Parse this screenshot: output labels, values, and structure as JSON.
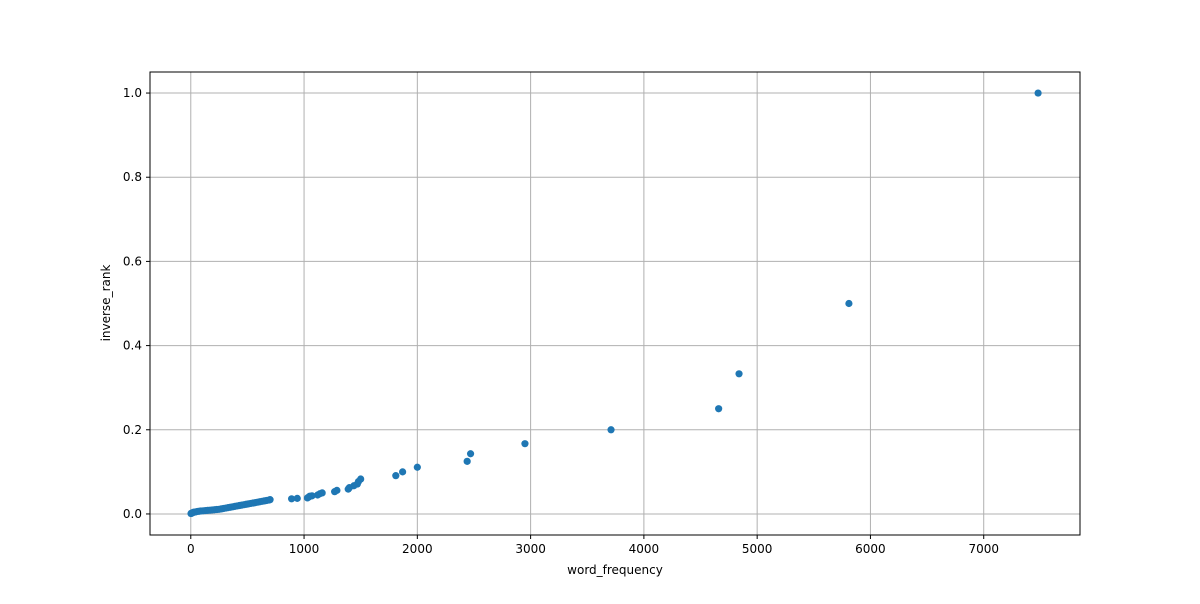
{
  "chart_data": {
    "type": "scatter",
    "title": "",
    "xlabel": "word_frequency",
    "ylabel": "inverse_rank",
    "xlim": [
      -360,
      7850
    ],
    "ylim": [
      -0.05,
      1.05
    ],
    "x_ticks": [
      0,
      1000,
      2000,
      3000,
      4000,
      5000,
      6000,
      7000
    ],
    "x_tick_labels": [
      "0",
      "1000",
      "2000",
      "3000",
      "4000",
      "5000",
      "6000",
      "7000"
    ],
    "y_ticks": [
      0.0,
      0.2,
      0.4,
      0.6,
      0.8,
      1.0
    ],
    "y_tick_labels": [
      "0.0",
      "0.2",
      "0.4",
      "0.6",
      "0.8",
      "1.0"
    ],
    "grid": true,
    "colors": {
      "marker": "#1f77b4",
      "grid": "#b0b0b0",
      "axis": "#000000"
    },
    "series": [
      {
        "x": [
          7480,
          5810,
          4840,
          4660,
          3710,
          2950,
          2470,
          2440,
          2000,
          1870,
          1810,
          1500,
          1480,
          1470,
          1440,
          1400,
          1390,
          1290,
          1270,
          1160,
          1140,
          1120,
          1070,
          1050,
          1040,
          1030,
          940,
          890,
          700,
          690,
          670,
          650,
          630,
          610,
          590,
          570,
          550,
          530,
          510,
          490,
          470,
          450,
          430,
          410,
          390,
          370,
          350,
          330,
          310,
          290,
          270,
          250,
          230,
          210,
          190,
          170,
          150,
          130,
          110,
          90,
          75,
          60,
          45,
          35,
          25,
          15,
          10,
          5,
          2
        ],
        "y": [
          1.0,
          0.5,
          0.333,
          0.25,
          0.2,
          0.167,
          0.143,
          0.125,
          0.111,
          0.1,
          0.091,
          0.083,
          0.077,
          0.071,
          0.067,
          0.0625,
          0.059,
          0.056,
          0.053,
          0.05,
          0.048,
          0.045,
          0.043,
          0.042,
          0.04,
          0.038,
          0.037,
          0.036,
          0.034,
          0.033,
          0.032,
          0.031,
          0.03,
          0.029,
          0.028,
          0.027,
          0.026,
          0.025,
          0.024,
          0.023,
          0.022,
          0.021,
          0.02,
          0.019,
          0.018,
          0.017,
          0.016,
          0.015,
          0.014,
          0.013,
          0.012,
          0.011,
          0.0105,
          0.01,
          0.0095,
          0.009,
          0.0085,
          0.008,
          0.0075,
          0.007,
          0.0065,
          0.006,
          0.005,
          0.0045,
          0.004,
          0.003,
          0.002,
          0.0015,
          0.001
        ]
      }
    ]
  }
}
